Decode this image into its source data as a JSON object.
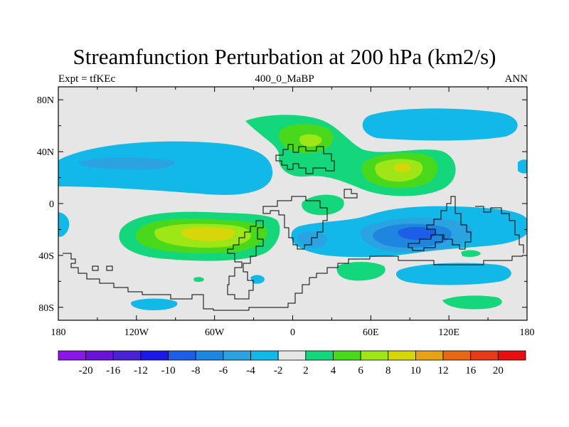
{
  "title": "Streamfunction Perturbation at 200 hPa (km2/s)",
  "subtitle_left": "Expt = tfKEc",
  "subtitle_center": "400_0_MaBP",
  "subtitle_right": "ANN",
  "map": {
    "lon_ticks": [
      "180",
      "120W",
      "60W",
      "0",
      "60E",
      "120E",
      "180"
    ],
    "lat_ticks": [
      "80N",
      "40N",
      "0",
      "40S",
      "80S"
    ],
    "background_color": "#e6e6e6"
  },
  "colorbar": {
    "labels": [
      "-20",
      "-16",
      "-12",
      "-10",
      "-8",
      "-6",
      "-4",
      "-2",
      "2",
      "4",
      "6",
      "8",
      "10",
      "12",
      "16",
      "20"
    ],
    "colors": [
      "#8a16e8",
      "#6b12d9",
      "#4b22d1",
      "#1a1ae6",
      "#1c5fe6",
      "#1f86e0",
      "#2aa3e0",
      "#12b8e8",
      "#e6e6e6",
      "#14d67a",
      "#49d81c",
      "#9ee615",
      "#d6d60a",
      "#e6a316",
      "#e66714",
      "#e63a16",
      "#e60e0e"
    ]
  }
}
